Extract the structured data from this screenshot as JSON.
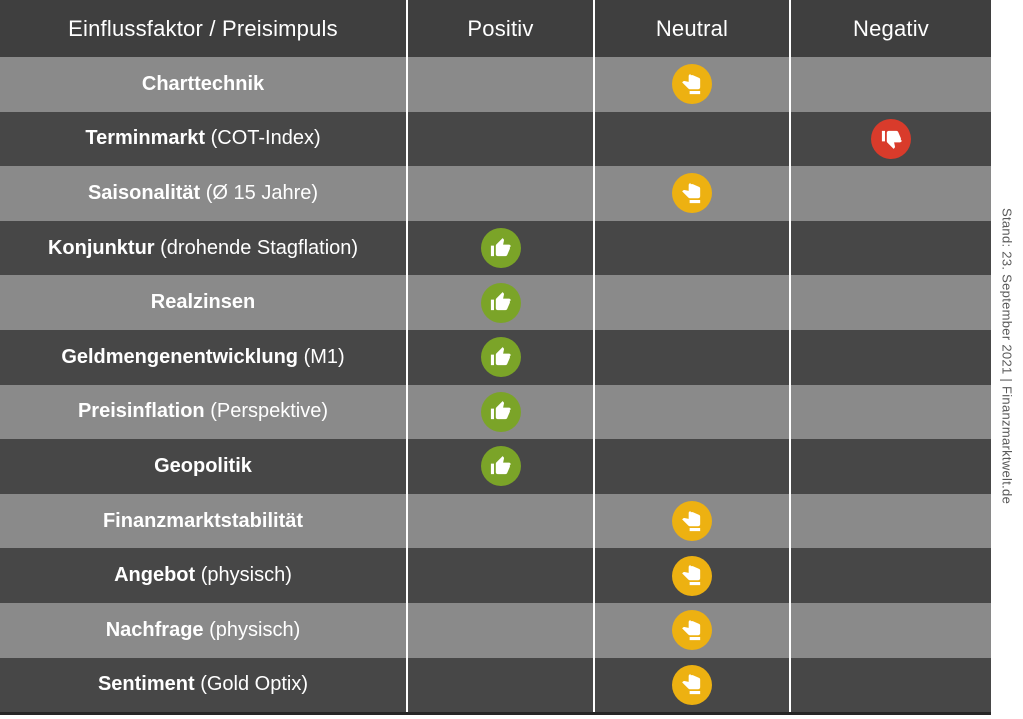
{
  "chart_data": {
    "type": "table",
    "title": "Einflussfaktor / Preisimpuls",
    "columns": [
      "Positiv",
      "Neutral",
      "Negativ"
    ],
    "rows": [
      {
        "factor": "Charttechnik",
        "detail": "",
        "rating": "neutral"
      },
      {
        "factor": "Terminmarkt",
        "detail": " (COT-Index)",
        "rating": "negative"
      },
      {
        "factor": "Saisonalität",
        "detail": " (Ø 15 Jahre)",
        "rating": "neutral"
      },
      {
        "factor": "Konjunktur",
        "detail": " (drohende Stagflation)",
        "rating": "positive"
      },
      {
        "factor": "Realzinsen",
        "detail": "",
        "rating": "positive"
      },
      {
        "factor": "Geldmengenentwicklung",
        "detail": " (M1)",
        "rating": "positive"
      },
      {
        "factor": "Preisinflation",
        "detail": " (Perspektive)",
        "rating": "positive"
      },
      {
        "factor": "Geopolitik",
        "detail": "",
        "rating": "positive"
      },
      {
        "factor": "Finanzmarktstabilität",
        "detail": "",
        "rating": "neutral"
      },
      {
        "factor": "Angebot",
        "detail": " (physisch)",
        "rating": "neutral"
      },
      {
        "factor": "Nachfrage",
        "detail": " (physisch)",
        "rating": "neutral"
      },
      {
        "factor": "Sentiment",
        "detail": " (Gold Optix)",
        "rating": "neutral"
      }
    ],
    "colors": {
      "positive": "#7BA428",
      "neutral": "#EDB111",
      "negative": "#D93B2B",
      "header_bg": "#3F3F3F",
      "row_dark": "#474747",
      "row_light": "#8A8A8A"
    },
    "grid": false,
    "legend_position": "header"
  },
  "side_note": "Stand: 23. September 2021 | Finanzmarktwelt.de"
}
